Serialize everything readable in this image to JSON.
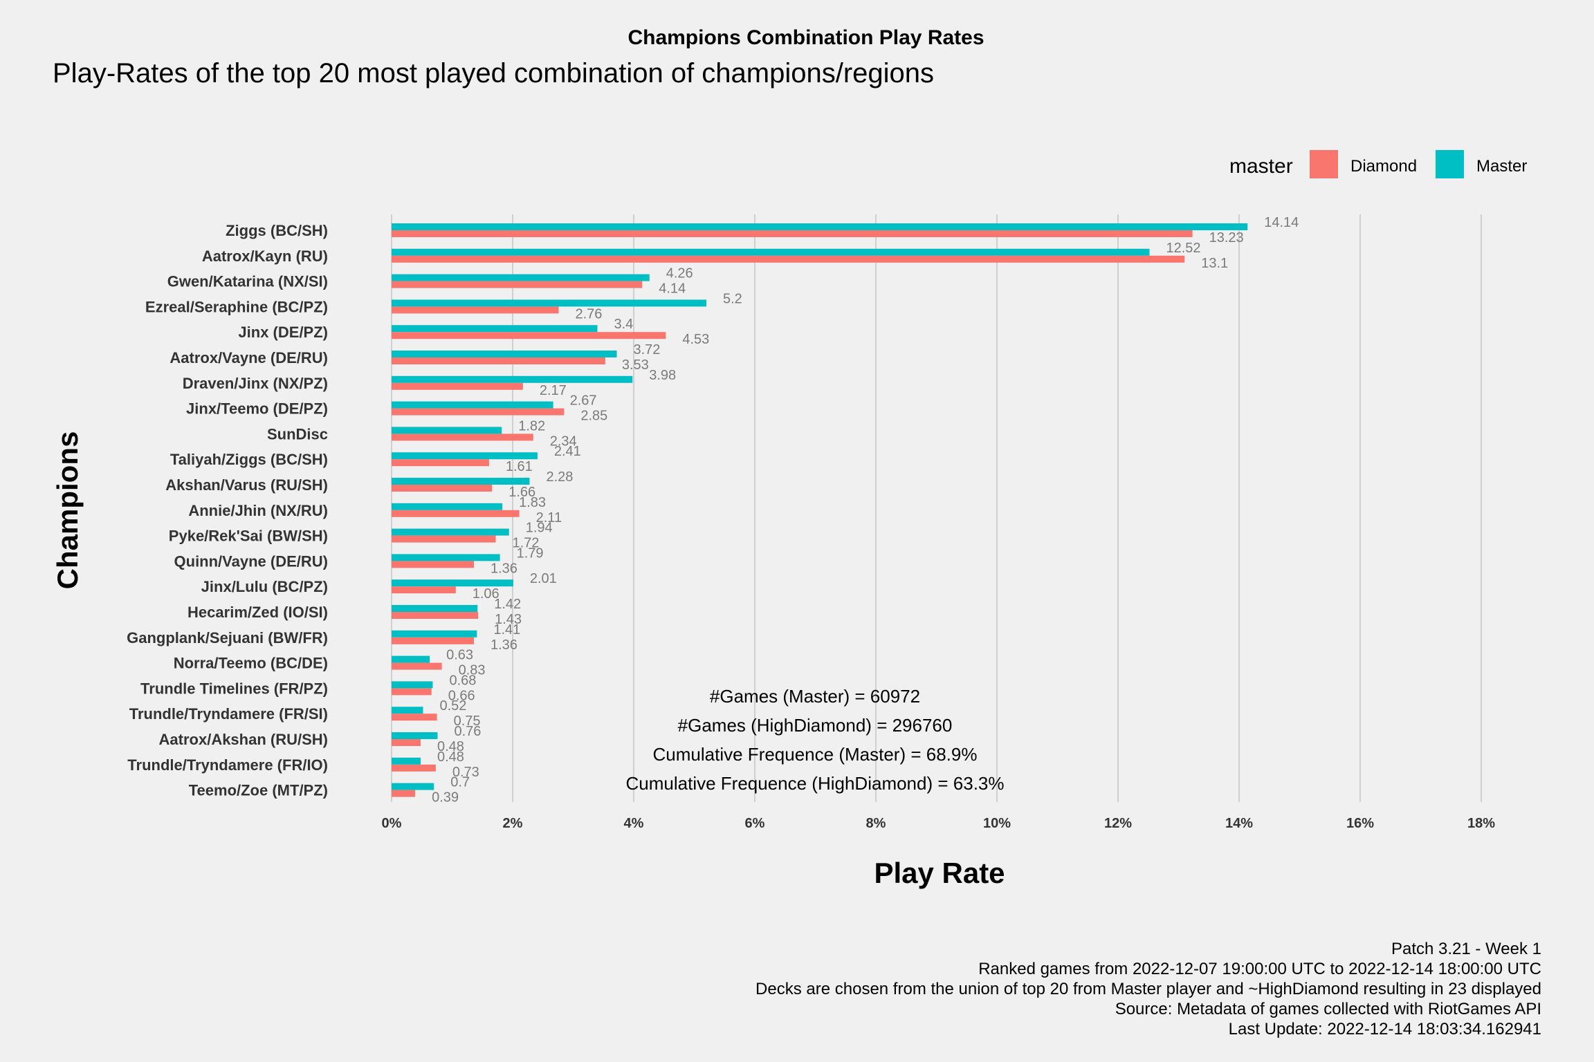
{
  "chart_data": {
    "type": "bar",
    "orientation": "horizontal",
    "title": "Champions Combination Play Rates",
    "subtitle": "Play-Rates of the top 20 most played combination of champions/regions",
    "xlabel": "Play Rate",
    "ylabel": "Champions",
    "xlim": [
      0,
      18
    ],
    "xticks": [
      "0%",
      "2%",
      "4%",
      "6%",
      "8%",
      "10%",
      "12%",
      "14%",
      "16%",
      "18%"
    ],
    "grid": true,
    "legend": {
      "title": "master",
      "placement": "top-right",
      "entries": [
        "Diamond",
        "Master"
      ]
    },
    "colors": {
      "Diamond": "#f8766d",
      "Master": "#00bfc4"
    },
    "categories": [
      "Ziggs (BC/SH)",
      "Aatrox/Kayn (RU)",
      "Gwen/Katarina (NX/SI)",
      "Ezreal/Seraphine (BC/PZ)",
      "Jinx (DE/PZ)",
      "Aatrox/Vayne (DE/RU)",
      "Draven/Jinx (NX/PZ)",
      "Jinx/Teemo (DE/PZ)",
      "SunDisc",
      "Taliyah/Ziggs (BC/SH)",
      "Akshan/Varus (RU/SH)",
      "Annie/Jhin (NX/RU)",
      "Pyke/Rek'Sai (BW/SH)",
      "Quinn/Vayne (DE/RU)",
      "Jinx/Lulu (BC/PZ)",
      "Hecarim/Zed (IO/SI)",
      "Gangplank/Sejuani (BW/FR)",
      "Norra/Teemo (BC/DE)",
      "Trundle Timelines (FR/PZ)",
      "Trundle/Tryndamere (FR/SI)",
      "Aatrox/Akshan (RU/SH)",
      "Trundle/Tryndamere (FR/IO)",
      "Teemo/Zoe (MT/PZ)"
    ],
    "series": [
      {
        "name": "Master",
        "values": [
          14.14,
          12.52,
          4.26,
          5.2,
          3.4,
          3.72,
          3.98,
          2.67,
          1.82,
          2.41,
          2.28,
          1.83,
          1.94,
          1.79,
          2.01,
          1.42,
          1.41,
          0.63,
          0.68,
          0.52,
          0.76,
          0.48,
          0.7
        ],
        "labels": [
          "14.14",
          "12.52",
          "4.26",
          "5.2",
          "3.4",
          "3.72",
          "3.98",
          "2.67",
          "1.82",
          "2.41",
          "2.28",
          "1.83",
          "1.94",
          "1.79",
          "2.01",
          "1.42",
          "1.41",
          "0.63",
          "0.68",
          "0.52",
          "0.76",
          "0.48",
          "0.7"
        ]
      },
      {
        "name": "Diamond",
        "values": [
          13.23,
          13.1,
          4.14,
          2.76,
          4.53,
          3.53,
          2.17,
          2.85,
          2.34,
          1.61,
          1.66,
          2.11,
          1.72,
          1.36,
          1.06,
          1.43,
          1.36,
          0.83,
          0.66,
          0.75,
          0.48,
          0.73,
          0.39
        ],
        "labels": [
          "13.23",
          "13.1",
          "4.14",
          "2.76",
          "4.53",
          "3.53",
          "2.17",
          "2.85",
          "2.34",
          "1.61",
          "1.66",
          "2.11",
          "1.72",
          "1.36",
          "1.06",
          "1.43",
          "1.36",
          "0.83",
          "0.66",
          "0.75",
          "0.48",
          "0.73",
          "0.39"
        ]
      }
    ],
    "annotations": [
      "#Games (Master) = 60972",
      "#Games (HighDiamond) = 296760",
      "Cumulative Frequence (Master) = 68.9%",
      "Cumulative Frequence (HighDiamond) = 63.3%"
    ],
    "caption": [
      "Patch 3.21 - Week 1",
      "Ranked games from 2022-12-07 19:00:00 UTC to 2022-12-14 18:00:00 UTC",
      "Decks are chosen from the union of top 20 from Master player and ~HighDiamond resulting in 23 displayed",
      "Source: Metadata of games collected with RiotGames API",
      "Last Update: 2022-12-14 18:03:34.162941"
    ]
  }
}
